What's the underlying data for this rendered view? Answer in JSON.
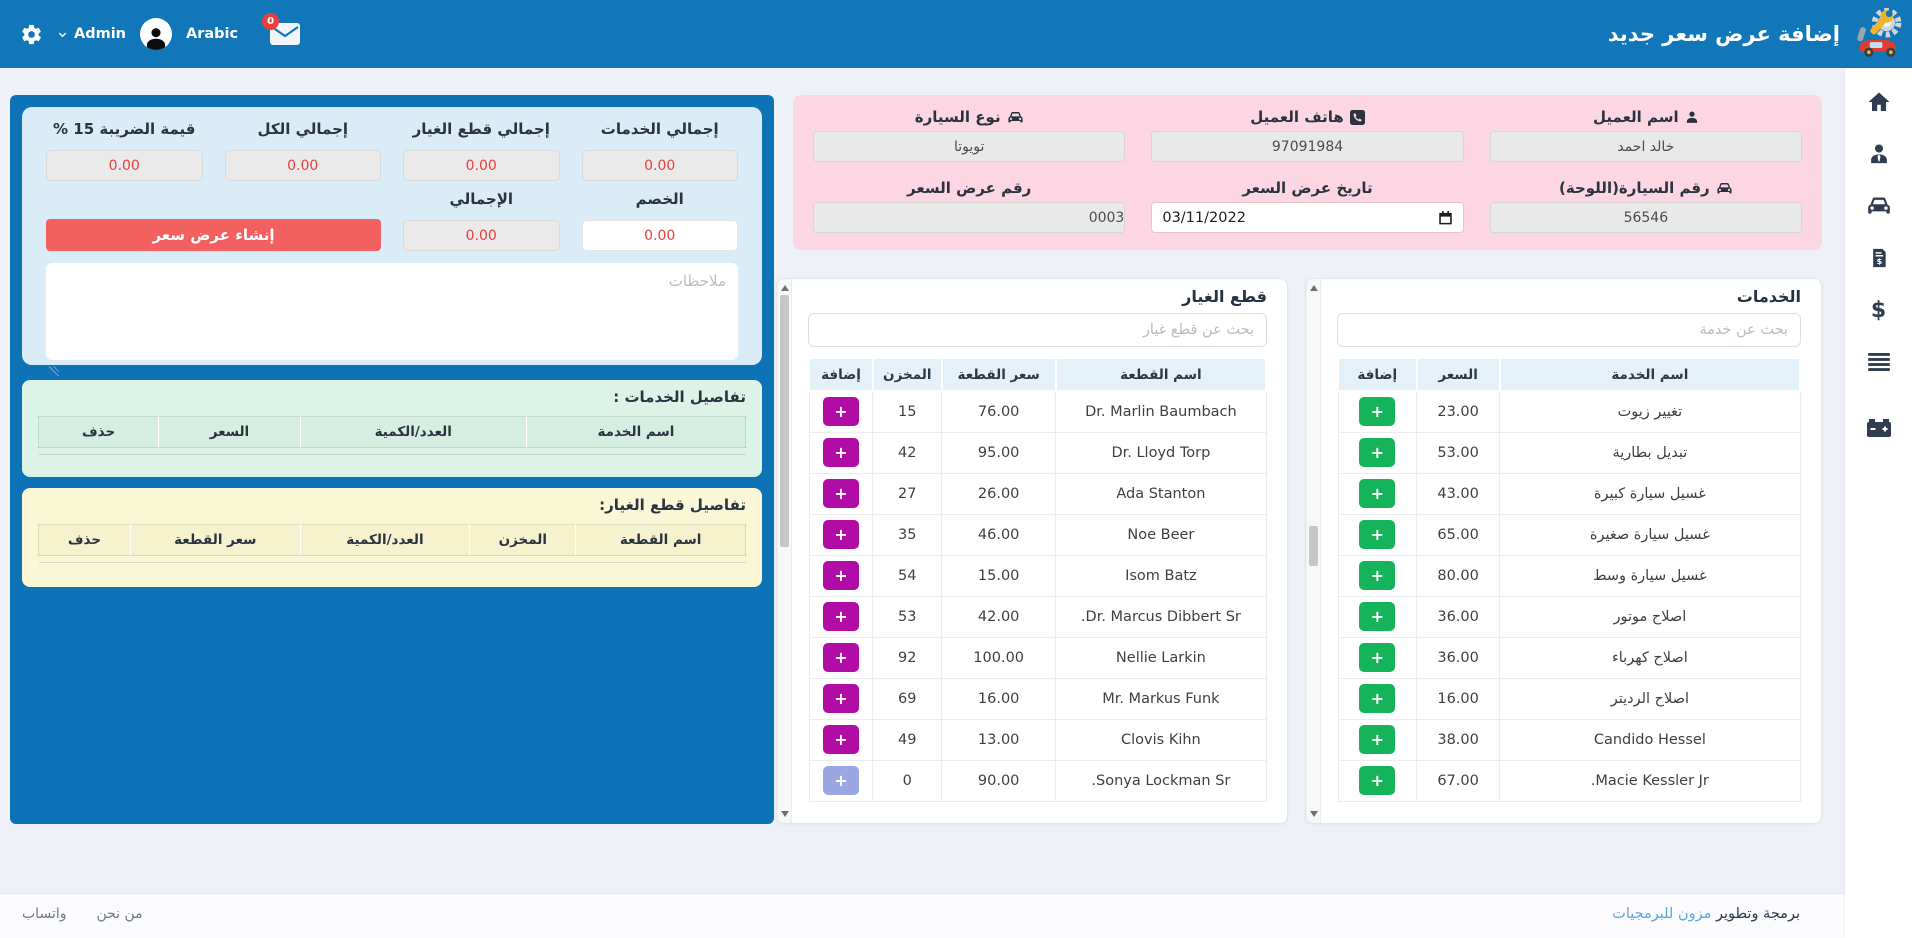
{
  "navbar": {
    "title": "إضافة عرض سعر جديد",
    "admin_label": "Admin",
    "language_label": "Arabic",
    "mail_badge": "0"
  },
  "sidebar": {
    "items": [
      {
        "icon": "home-icon"
      },
      {
        "icon": "customer-icon"
      },
      {
        "icon": "car-icon"
      },
      {
        "icon": "invoice-dollar-icon"
      },
      {
        "icon": "dollar-icon"
      },
      {
        "icon": "list-icon"
      },
      {
        "icon": "car-battery-icon"
      }
    ]
  },
  "vehicle_form": {
    "fields": [
      {
        "label": "اسم العميل",
        "value": "خالد احمد",
        "icon": "user"
      },
      {
        "label": "هاتف العميل",
        "value": "97091984",
        "icon": "phone"
      },
      {
        "label": "نوع السيارة",
        "value": "تويوتا",
        "icon": "car"
      },
      {
        "label": "رقم السيارة(اللوحة)",
        "value": "56546",
        "icon": "car"
      },
      {
        "label": "تاريخ عرض السعر",
        "value": "03/11/2022",
        "icon": "calendar"
      },
      {
        "label": "رقم عرض السعر",
        "value": "0003",
        "icon": "none"
      }
    ]
  },
  "summary": {
    "totals": [
      {
        "label": "إجمالي الخدمات",
        "value": "0.00"
      },
      {
        "label": "إجمالي قطع الغيار",
        "value": "0.00"
      },
      {
        "label": "إجمالي الكل",
        "value": "0.00"
      },
      {
        "label": "قيمة الضريبة 15 %",
        "value": "0.00"
      }
    ],
    "discount": {
      "label": "الخصم",
      "value": "0.00"
    },
    "grand_total": {
      "label": "الإجمالي",
      "value": "0.00"
    },
    "create_button_label": "إنشاء عرض سعر",
    "notes_placeholder": "ملاحظات"
  },
  "services_details": {
    "title": "تفاصيل الخدمات :",
    "columns": [
      "اسم الخدمة",
      "العدد/الكمية",
      "السعر",
      "حذف"
    ]
  },
  "parts_details": {
    "title": "تفاصيل قطع الغيار:",
    "columns": [
      "اسم القطعة",
      "المخزن",
      "العدد/الكمية",
      "سعر القطعة",
      "حذف"
    ]
  },
  "parts_panel": {
    "title": "قطع الغيار",
    "search_placeholder": "بحث عن قطع غيار",
    "columns": [
      "اسم القطعة",
      "سعر القطعة",
      "المخزن",
      "إضافة"
    ],
    "add_label": "+",
    "rows": [
      {
        "name": "Dr. Marlin Baumbach",
        "price": "76.00",
        "stock": "15",
        "disabled": false
      },
      {
        "name": "Dr. Lloyd Torp",
        "price": "95.00",
        "stock": "42",
        "disabled": false
      },
      {
        "name": "Ada Stanton",
        "price": "26.00",
        "stock": "27",
        "disabled": false
      },
      {
        "name": "Noe Beer",
        "price": "46.00",
        "stock": "35",
        "disabled": false
      },
      {
        "name": "Isom Batz",
        "price": "15.00",
        "stock": "54",
        "disabled": false
      },
      {
        "name": "Dr. Marcus Dibbert Sr.",
        "price": "42.00",
        "stock": "53",
        "disabled": false
      },
      {
        "name": "Nellie Larkin",
        "price": "100.00",
        "stock": "92",
        "disabled": false
      },
      {
        "name": "Mr. Markus Funk",
        "price": "16.00",
        "stock": "69",
        "disabled": false
      },
      {
        "name": "Clovis Kihn",
        "price": "13.00",
        "stock": "49",
        "disabled": false
      },
      {
        "name": "Sonya Lockman Sr.",
        "price": "90.00",
        "stock": "0",
        "disabled": true
      }
    ]
  },
  "services_panel": {
    "title": "الخدمات",
    "search_placeholder": "بحث عن خدمة",
    "columns": [
      "اسم الخدمة",
      "السعر",
      "إضافة"
    ],
    "add_label": "+",
    "rows": [
      {
        "name": "تغيير زيوت",
        "price": "23.00"
      },
      {
        "name": "تبديل بطارية",
        "price": "53.00"
      },
      {
        "name": "غسيل سيارة كبيرة",
        "price": "43.00"
      },
      {
        "name": "غسيل سيارة صغيرة",
        "price": "65.00"
      },
      {
        "name": "غسيل سيارة وسط",
        "price": "80.00"
      },
      {
        "name": "اصلاح موتور",
        "price": "36.00"
      },
      {
        "name": "اصلاح كهرباء",
        "price": "36.00"
      },
      {
        "name": "اصلاح الرديتر",
        "price": "16.00"
      },
      {
        "name": "Candido Hessel",
        "price": "38.00"
      },
      {
        "name": "Macie Kessler Jr.",
        "price": "67.00"
      }
    ]
  },
  "footer": {
    "links": [
      "من نحن",
      "واتساب"
    ],
    "credit_prefix": "برمجة وتطوير",
    "credit_link": "مزون للبرمجيات"
  },
  "colors": {
    "navbar_blue": "#1177b8",
    "panel_blue": "#0d73b6",
    "pink": "#fcd6e3",
    "summary_card": "#d9ecf8",
    "green_panel": "#dcf4e8",
    "yellow_panel": "#faf7d7",
    "table_header": "#e4f1f9",
    "value_red": "#e8403c",
    "create_red": "#f2605f",
    "add_green": "#16b45a",
    "add_purple": "#b10ca6",
    "add_disabled": "#9ba7e2",
    "footer_link_blue": "#5aa7dd"
  }
}
